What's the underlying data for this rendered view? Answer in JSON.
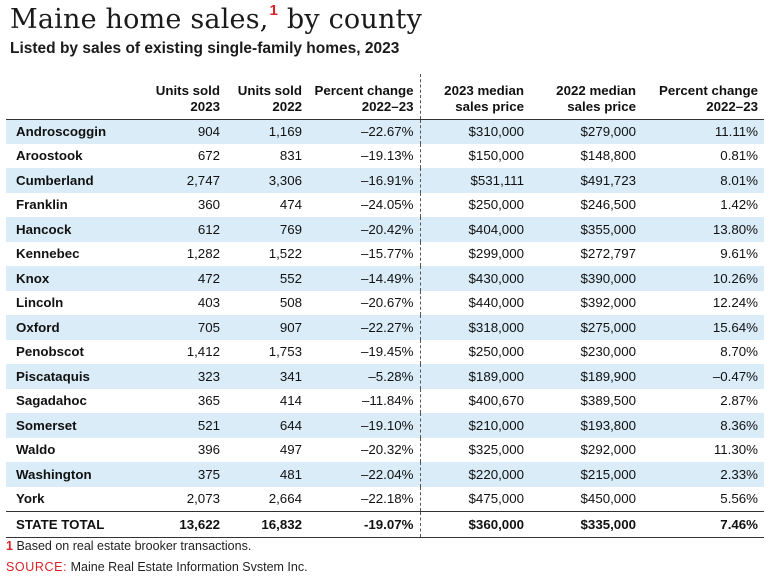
{
  "title": "Maine home sales,",
  "title_footnote_marker": "1",
  "subtitle": "Listed by sales of existing single-family homes, 2023",
  "chart_data": {
    "type": "table",
    "columns": [
      {
        "line1": "",
        "line2": ""
      },
      {
        "line1": "Units sold",
        "line2": "2023"
      },
      {
        "line1": "Units sold",
        "line2": "2022"
      },
      {
        "line1": "Percent change",
        "line2": "2022–23"
      },
      {
        "line1": "2023 median",
        "line2": "sales price"
      },
      {
        "line1": "2022 median",
        "line2": "sales price"
      },
      {
        "line1": "Percent change",
        "line2": "2022–23"
      }
    ],
    "rows": [
      [
        "Androscoggin",
        "904",
        "1,169",
        "–22.67%",
        "$310,000",
        "$279,000",
        "11.11%"
      ],
      [
        "Aroostook",
        "672",
        "831",
        "–19.13%",
        "$150,000",
        "$148,800",
        "0.81%"
      ],
      [
        "Cumberland",
        "2,747",
        "3,306",
        "–16.91%",
        "$531,111",
        "$491,723",
        "8.01%"
      ],
      [
        "Franklin",
        "360",
        "474",
        "–24.05%",
        "$250,000",
        "$246,500",
        "1.42%"
      ],
      [
        "Hancock",
        "612",
        "769",
        "–20.42%",
        "$404,000",
        "$355,000",
        "13.80%"
      ],
      [
        "Kennebec",
        "1,282",
        "1,522",
        "–15.77%",
        "$299,000",
        "$272,797",
        "9.61%"
      ],
      [
        "Knox",
        "472",
        "552",
        "–14.49%",
        "$430,000",
        "$390,000",
        "10.26%"
      ],
      [
        "Lincoln",
        "403",
        "508",
        "–20.67%",
        "$440,000",
        "$392,000",
        "12.24%"
      ],
      [
        "Oxford",
        "705",
        "907",
        "–22.27%",
        "$318,000",
        "$275,000",
        "15.64%"
      ],
      [
        "Penobscot",
        "1,412",
        "1,753",
        "–19.45%",
        "$250,000",
        "$230,000",
        "8.70%"
      ],
      [
        "Piscataquis",
        "323",
        "341",
        "–5.28%",
        "$189,000",
        "$189,900",
        "–0.47%"
      ],
      [
        "Sagadahoc",
        "365",
        "414",
        "–11.84%",
        "$400,670",
        "$389,500",
        "2.87%"
      ],
      [
        "Somerset",
        "521",
        "644",
        "–19.10%",
        "$210,000",
        "$193,800",
        "8.36%"
      ],
      [
        "Waldo",
        "396",
        "497",
        "–20.32%",
        "$325,000",
        "$292,000",
        "11.30%"
      ],
      [
        "Washington",
        "375",
        "481",
        "–22.04%",
        "$220,000",
        "$215,000",
        "2.33%"
      ],
      [
        "York",
        "2,073",
        "2,664",
        "–22.18%",
        "$475,000",
        "$450,000",
        "5.56%"
      ]
    ],
    "total": [
      "STATE TOTAL",
      "13,622",
      "16,832",
      "-19.07%",
      "$360,000",
      "$335,000",
      "7.46%"
    ]
  },
  "footnote": {
    "marker": "1",
    "text": "Based on real estate brooker transactions."
  },
  "source": {
    "label": "SOURCE:",
    "text": "Maine Real Estate Information Svstem Inc."
  },
  "colors": {
    "accent": "#d8232a",
    "row_stripe": "#d9ecf7"
  }
}
